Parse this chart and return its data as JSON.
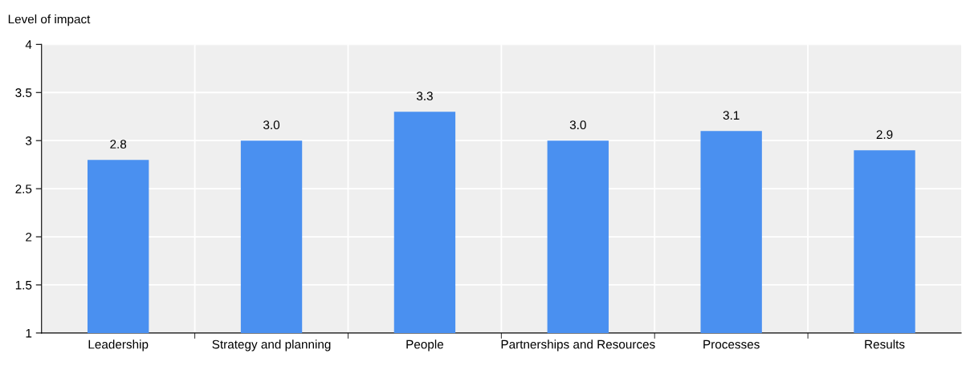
{
  "chart_data": {
    "type": "bar",
    "ylabel": "Level of impact",
    "categories": [
      "Leadership",
      "Strategy and planning",
      "People",
      "Partnerships and Resources",
      "Processes",
      "Results"
    ],
    "values": [
      2.8,
      3.0,
      3.3,
      3.0,
      3.1,
      2.9
    ],
    "value_labels": [
      "2.8",
      "3.0",
      "3.3",
      "3.0",
      "3.1",
      "2.9"
    ],
    "color": "#4a90f0",
    "ylim": [
      1,
      4
    ],
    "yticks": [
      1,
      1.5,
      2,
      2.5,
      3,
      3.5,
      4
    ],
    "grid": true
  }
}
